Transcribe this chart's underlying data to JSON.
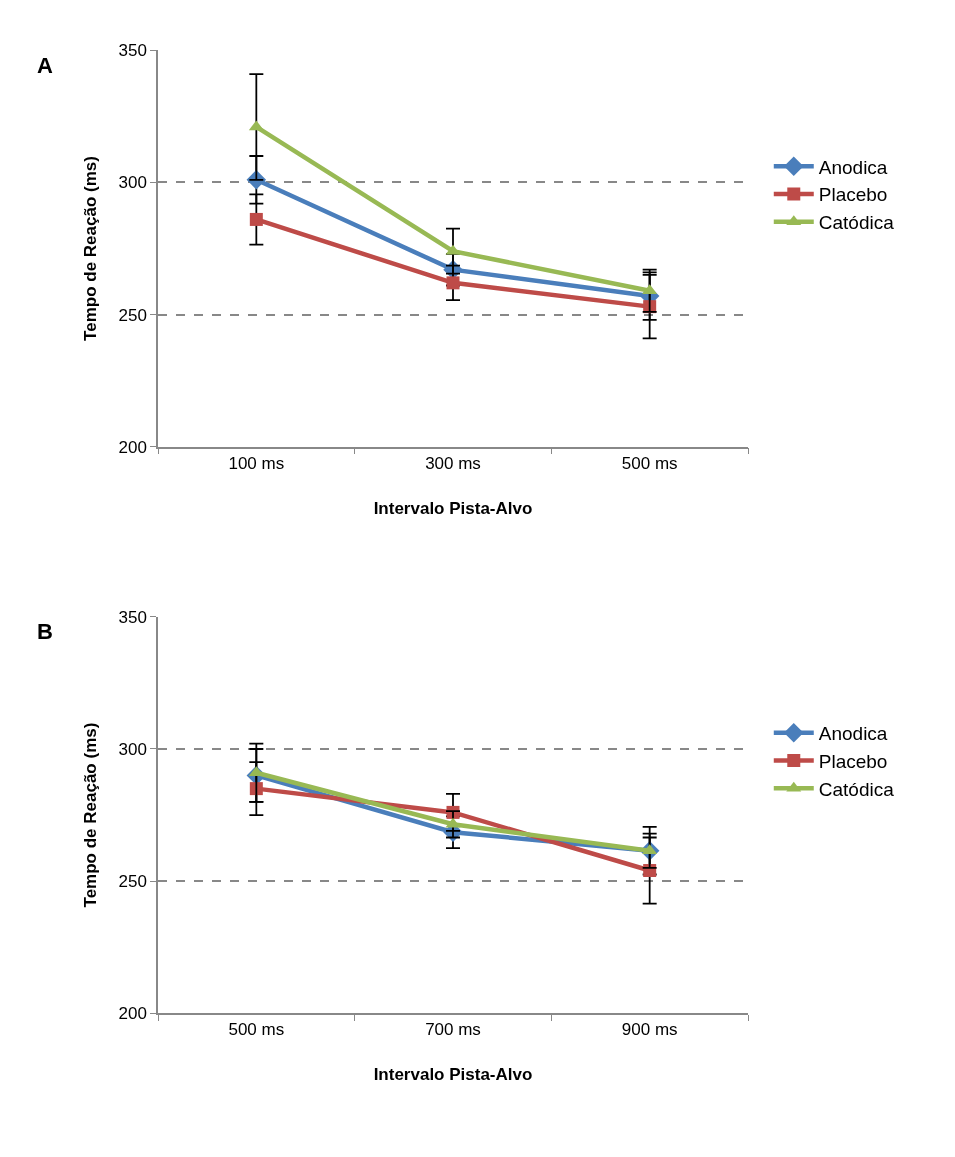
{
  "chart_data": [
    {
      "type": "line",
      "title": "A",
      "xlabel": "Intervalo Pista-Alvo",
      "ylabel": "Tempo de Reação (ms)",
      "categories": [
        "100 ms",
        "300 ms",
        "500 ms"
      ],
      "ylim": [
        200,
        350
      ],
      "yticks": [
        200,
        250,
        300,
        350
      ],
      "grid": "y",
      "legend": "right",
      "line_style": "solid",
      "series": [
        {
          "name": "Anodica",
          "color": "#4a7ebb",
          "marker": "diamond",
          "values": [
            301,
            267,
            257
          ],
          "errors": [
            9,
            6,
            9
          ]
        },
        {
          "name": "Placebo",
          "color": "#be4b48",
          "marker": "square",
          "values": [
            286,
            262,
            253
          ],
          "errors": [
            9.5,
            6.5,
            12
          ]
        },
        {
          "name": "Catódica",
          "color": "#98b954",
          "marker": "triangle",
          "values": [
            321,
            274,
            259
          ],
          "errors": [
            20,
            8.5,
            8
          ]
        }
      ]
    },
    {
      "type": "line",
      "title": "B",
      "xlabel": "Intervalo Pista-Alvo",
      "ylabel": "Tempo de Reação (ms)",
      "categories": [
        "500 ms",
        "700 ms",
        "900 ms"
      ],
      "ylim": [
        200,
        350
      ],
      "yticks": [
        200,
        250,
        300,
        350
      ],
      "grid": "y",
      "legend": "right",
      "line_style": "solid",
      "series": [
        {
          "name": "Anodica",
          "color": "#4a7ebb",
          "marker": "diamond",
          "values": [
            290,
            268.5,
            261.5
          ],
          "errors": [
            10,
            6,
            9
          ]
        },
        {
          "name": "Placebo",
          "color": "#be4b48",
          "marker": "square",
          "values": [
            285,
            276,
            254
          ],
          "errors": [
            10,
            7,
            12.5
          ]
        },
        {
          "name": "Catódica",
          "color": "#98b954",
          "marker": "triangle",
          "values": [
            291,
            271.5,
            261.5
          ],
          "errors": [
            11,
            5,
            6.5
          ]
        }
      ]
    }
  ]
}
